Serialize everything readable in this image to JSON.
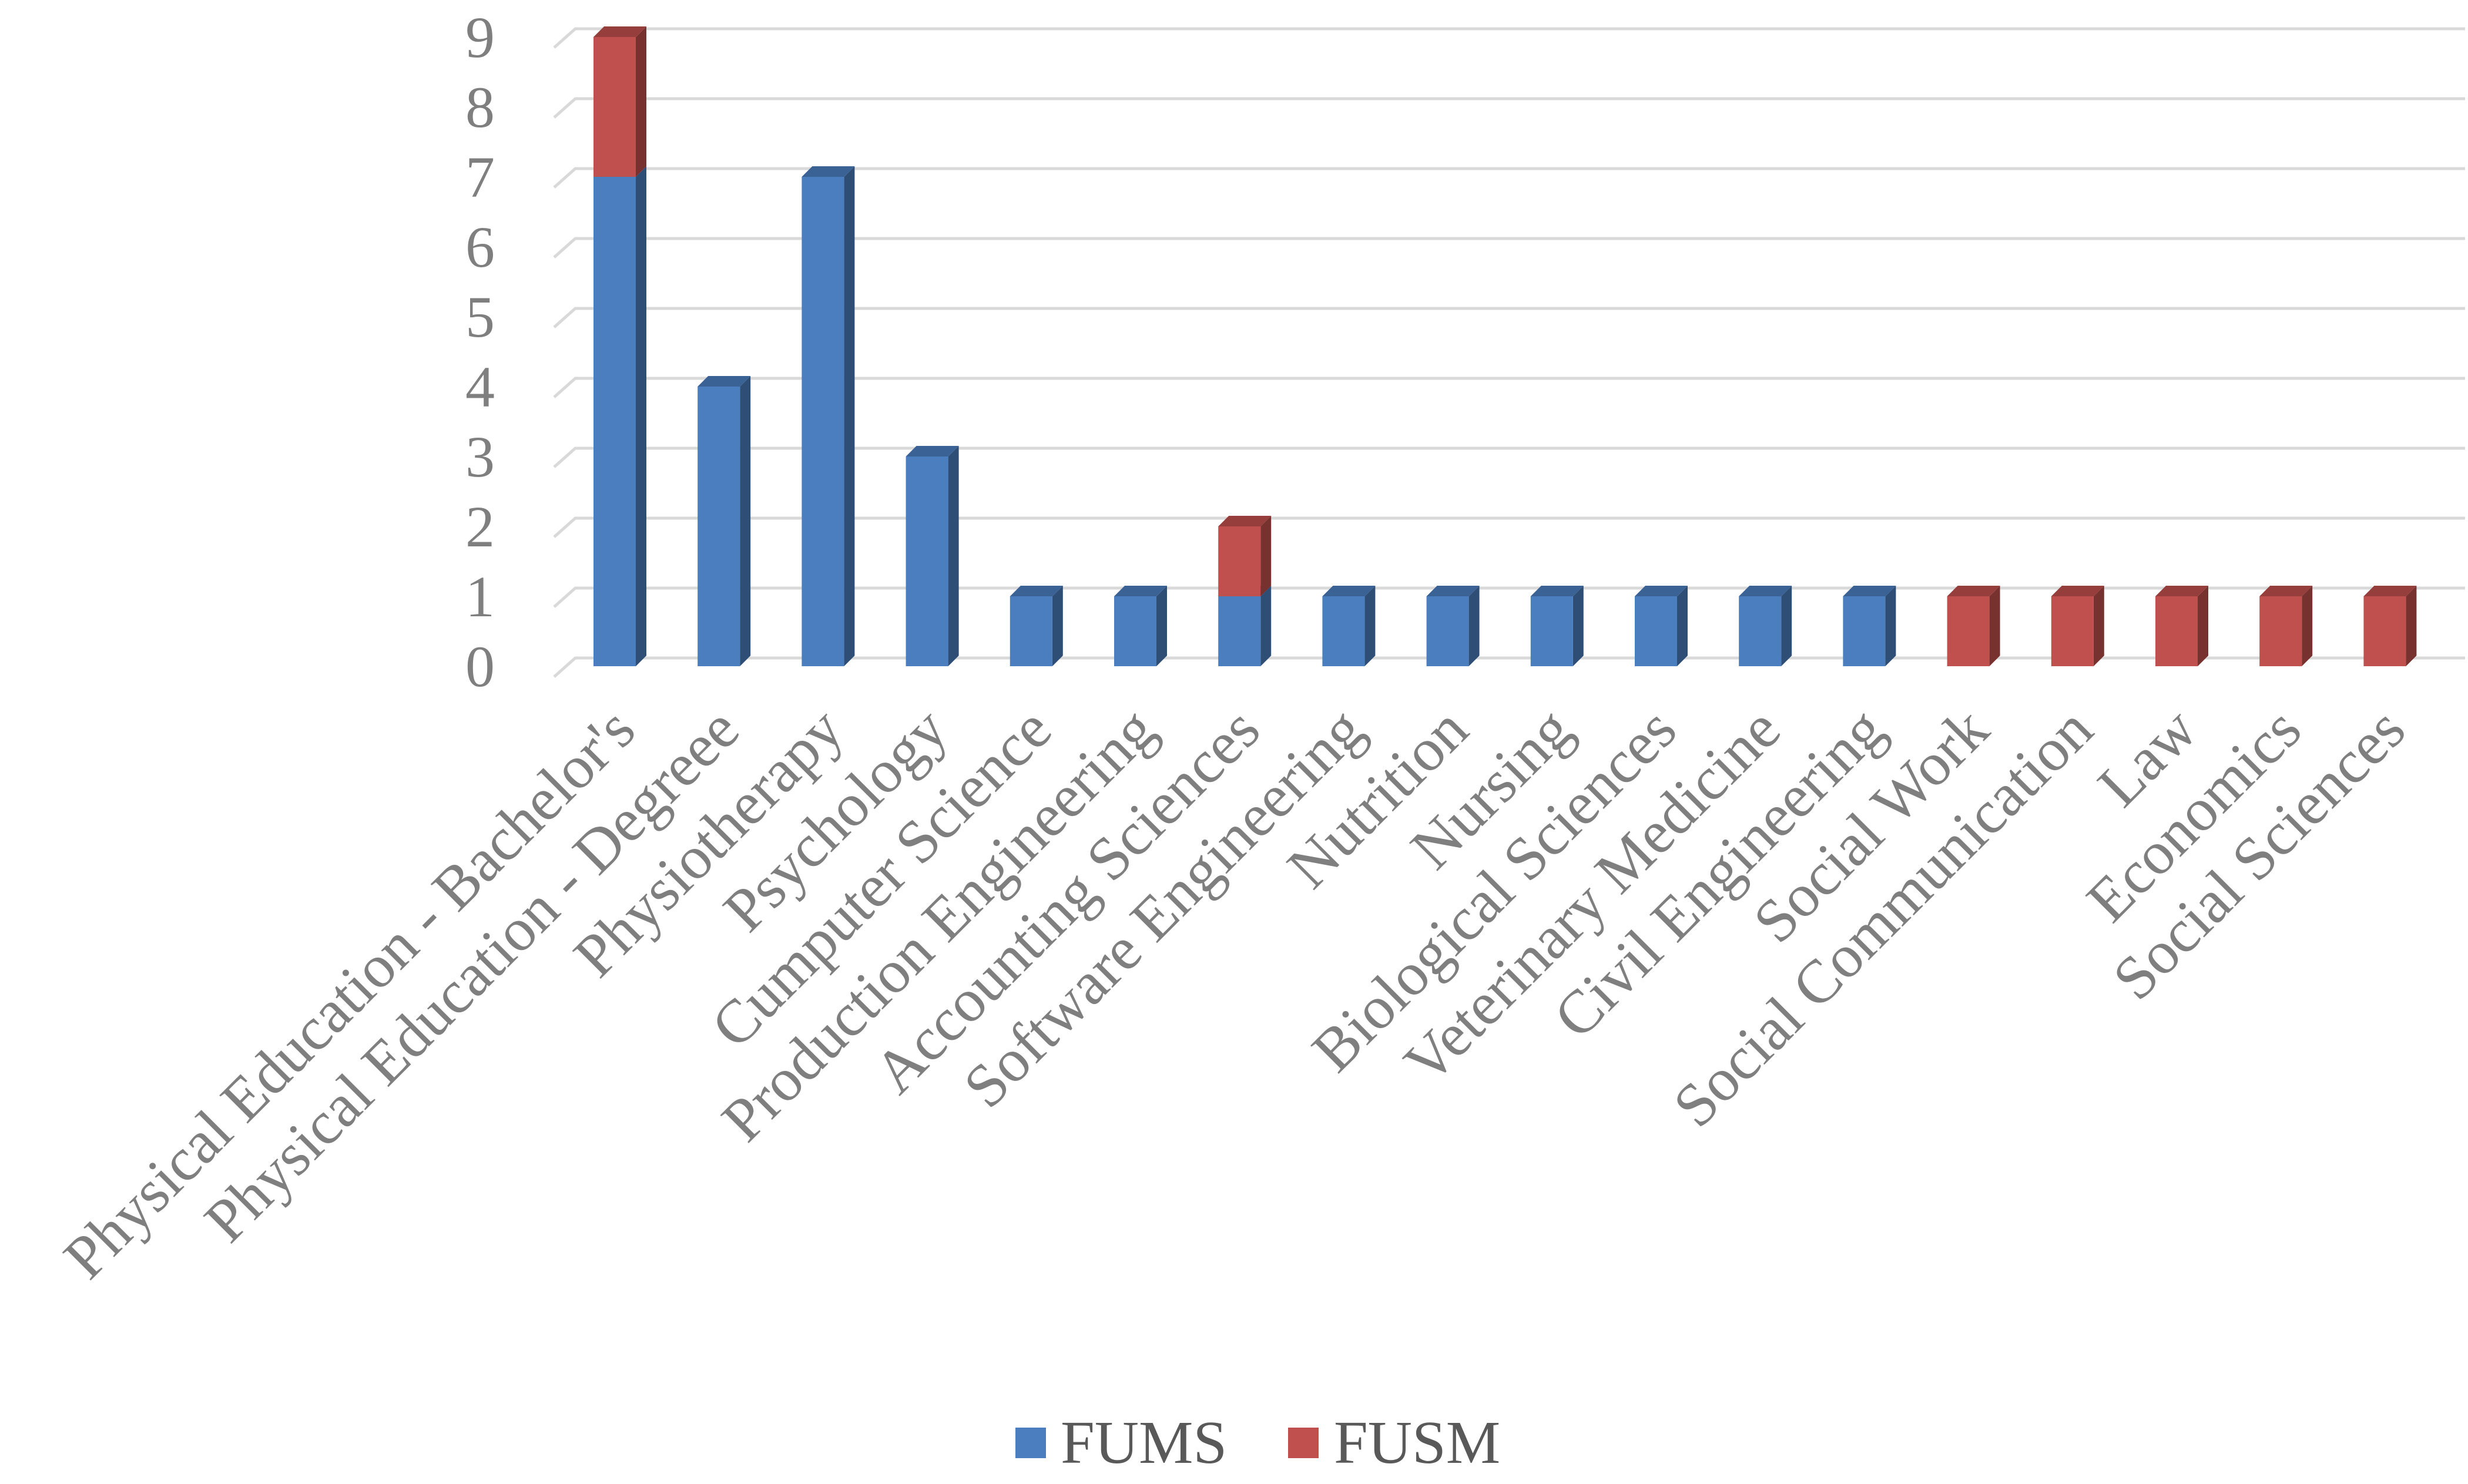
{
  "chart_data": {
    "type": "bar",
    "stacked": true,
    "three_d": true,
    "categories": [
      "Physical Education - Bachelor's",
      "Physical Education - Degreee",
      "Physiotherapy",
      "Psychology",
      "Cumputer Science",
      "Production Engineering",
      "Accounting Sciences",
      "Software Engineering",
      "Nutrition",
      "Nursing",
      "Biological Sciences",
      "Veterinary Medicine",
      "Civil Engineering",
      "Social Work",
      "Social Communication",
      "Law",
      "Economics",
      "Social Sciences"
    ],
    "series": [
      {
        "name": "FUMS",
        "color": "#4a7ebf",
        "values": [
          7,
          4,
          7,
          3,
          1,
          1,
          1,
          1,
          1,
          1,
          1,
          1,
          1,
          0,
          0,
          0,
          0,
          0
        ]
      },
      {
        "name": "FUSM",
        "color": "#c0504d",
        "values": [
          2,
          0,
          0,
          0,
          0,
          0,
          1,
          0,
          0,
          0,
          0,
          0,
          0,
          1,
          1,
          1,
          1,
          1
        ]
      }
    ],
    "ylim": [
      0,
      9
    ],
    "y_ticks": [
      0,
      1,
      2,
      3,
      4,
      5,
      6,
      7,
      8,
      9
    ],
    "grid": true,
    "legend_position": "bottom",
    "title": "",
    "xlabel": "",
    "ylabel": ""
  }
}
